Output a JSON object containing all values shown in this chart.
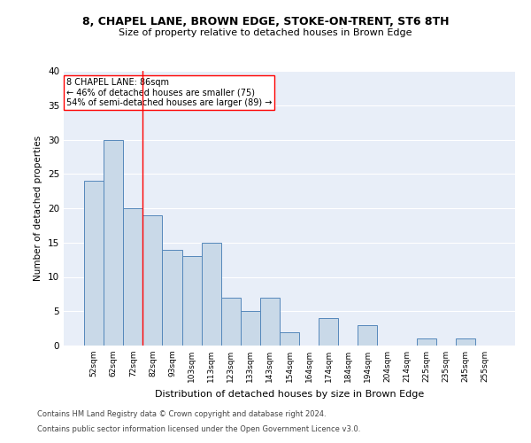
{
  "title1": "8, CHAPEL LANE, BROWN EDGE, STOKE-ON-TRENT, ST6 8TH",
  "title2": "Size of property relative to detached houses in Brown Edge",
  "xlabel": "Distribution of detached houses by size in Brown Edge",
  "ylabel": "Number of detached properties",
  "categories": [
    "52sqm",
    "62sqm",
    "72sqm",
    "82sqm",
    "93sqm",
    "103sqm",
    "113sqm",
    "123sqm",
    "133sqm",
    "143sqm",
    "154sqm",
    "164sqm",
    "174sqm",
    "184sqm",
    "194sqm",
    "204sqm",
    "214sqm",
    "225sqm",
    "235sqm",
    "245sqm",
    "255sqm"
  ],
  "values": [
    24,
    30,
    20,
    19,
    14,
    13,
    15,
    7,
    5,
    7,
    2,
    0,
    4,
    0,
    3,
    0,
    0,
    1,
    0,
    1,
    0
  ],
  "bar_color": "#c9d9e8",
  "bar_edge_color": "#5588bb",
  "background_color": "#e8eef8",
  "annotation_text": "8 CHAPEL LANE: 86sqm\n← 46% of detached houses are smaller (75)\n54% of semi-detached houses are larger (89) →",
  "vline_x": 2.5,
  "ylim": [
    0,
    40
  ],
  "yticks": [
    0,
    5,
    10,
    15,
    20,
    25,
    30,
    35,
    40
  ],
  "footer1": "Contains HM Land Registry data © Crown copyright and database right 2024.",
  "footer2": "Contains public sector information licensed under the Open Government Licence v3.0."
}
